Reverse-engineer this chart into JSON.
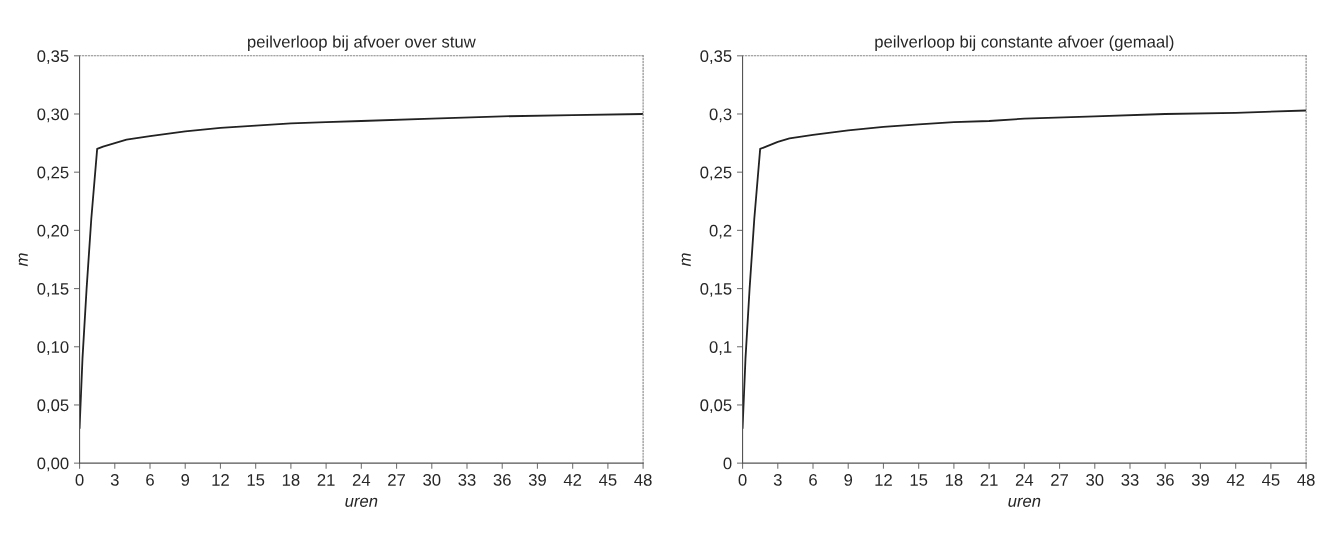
{
  "chart_data": [
    {
      "type": "line",
      "title": "peilverloop bij afvoer over stuw",
      "xlabel": "uren",
      "ylabel": "m",
      "x": [
        0,
        0.25,
        0.6,
        1,
        1.5,
        2,
        3,
        4,
        6,
        9,
        12,
        15,
        18,
        21,
        24,
        30,
        36,
        42,
        48
      ],
      "series": [
        {
          "color": "#222222",
          "values": [
            0.03,
            0.09,
            0.15,
            0.21,
            0.27,
            0.272,
            0.275,
            0.278,
            0.281,
            0.285,
            0.288,
            0.29,
            0.292,
            0.293,
            0.294,
            0.296,
            0.298,
            0.299,
            0.3
          ]
        }
      ],
      "xlim": [
        0,
        48
      ],
      "xticks": [
        0,
        3,
        6,
        9,
        12,
        15,
        18,
        21,
        24,
        27,
        30,
        33,
        36,
        39,
        42,
        45,
        48
      ],
      "ylim": [
        0,
        0.35
      ],
      "yticks": [
        {
          "value": 0,
          "label": "0,00"
        },
        {
          "value": 0.05,
          "label": "0,05"
        },
        {
          "value": 0.1,
          "label": "0,10"
        },
        {
          "value": 0.15,
          "label": "0,15"
        },
        {
          "value": 0.2,
          "label": "0,20"
        },
        {
          "value": 0.25,
          "label": "0,25"
        },
        {
          "value": 0.3,
          "label": "0,30"
        },
        {
          "value": 0.35,
          "label": "0,35"
        }
      ],
      "grid": false
    },
    {
      "type": "line",
      "title": "peilverloop bij constante afvoer (gemaal)",
      "xlabel": "uren",
      "ylabel": "m",
      "x": [
        0,
        0.25,
        0.6,
        1,
        1.5,
        2,
        3,
        4,
        6,
        9,
        12,
        15,
        18,
        21,
        24,
        30,
        36,
        42,
        48
      ],
      "series": [
        {
          "color": "#222222",
          "values": [
            0.03,
            0.09,
            0.15,
            0.21,
            0.27,
            0.272,
            0.276,
            0.279,
            0.282,
            0.286,
            0.289,
            0.291,
            0.293,
            0.294,
            0.296,
            0.298,
            0.3,
            0.301,
            0.303
          ]
        }
      ],
      "xlim": [
        0,
        48
      ],
      "xticks": [
        0,
        3,
        6,
        9,
        12,
        15,
        18,
        21,
        24,
        27,
        30,
        33,
        36,
        39,
        42,
        45,
        48
      ],
      "ylim": [
        0,
        0.35
      ],
      "yticks": [
        {
          "value": 0,
          "label": "0"
        },
        {
          "value": 0.05,
          "label": "0,05"
        },
        {
          "value": 0.1,
          "label": "0,1"
        },
        {
          "value": 0.15,
          "label": "0,15"
        },
        {
          "value": 0.2,
          "label": "0,2"
        },
        {
          "value": 0.25,
          "label": "0,25"
        },
        {
          "value": 0.3,
          "label": "0,3"
        },
        {
          "value": 0.35,
          "label": "0,35"
        }
      ],
      "grid": false
    }
  ]
}
